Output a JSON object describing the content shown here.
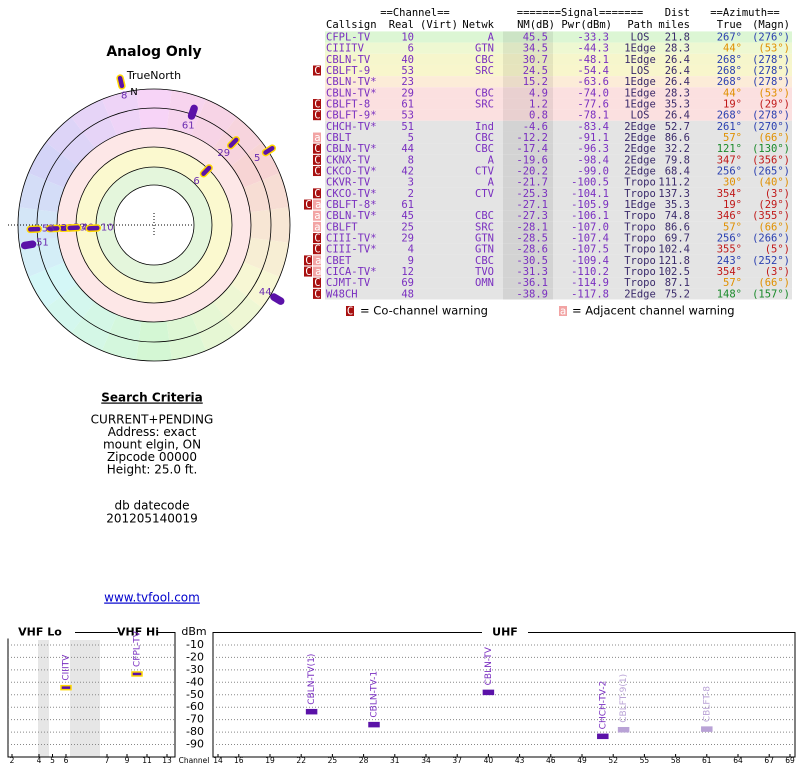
{
  "polar": {
    "title": "Analog Only",
    "north_label": "TrueNorth",
    "n_label": "N",
    "rlim": [
      87,
      -16
    ],
    "markers": [
      {
        "label": "8",
        "azimuth": 347,
        "nm": -19.6,
        "outline": "#ffd800"
      },
      {
        "label": "61",
        "azimuth": 19,
        "nm": 1.2
      },
      {
        "label": "29",
        "azimuth": 44,
        "nm": 4.9,
        "outline": "#ffd800"
      },
      {
        "label": "5",
        "azimuth": 57,
        "nm": -12.2,
        "outline": "#ffd800"
      },
      {
        "label": "6",
        "azimuth": 44,
        "nm": 34.5,
        "outline": "#ffd800"
      },
      {
        "label": "53",
        "azimuth": 268,
        "nm": 24.5,
        "outline": "#ffd800"
      },
      {
        "label": "23",
        "azimuth": 268,
        "nm": 15.2,
        "outline": "#ffd800"
      },
      {
        "label": "53",
        "azimuth": 268,
        "nm": 0.8,
        "outline": "#ffd800"
      },
      {
        "label": "40",
        "azimuth": 268,
        "nm": 30.7,
        "outline": "#ffd800"
      },
      {
        "label": "10",
        "azimuth": 267,
        "nm": 45.5,
        "outline": "#ffd800"
      },
      {
        "label": "51",
        "azimuth": 261,
        "nm": -4.6
      },
      {
        "label": "44",
        "azimuth": 121,
        "nm": -17.4
      }
    ]
  },
  "table": {
    "group_headers": [
      "==Channel==",
      "=======Signal=======",
      "Dist",
      "==Azimuth=="
    ],
    "headers": [
      "Callsign",
      "Real",
      "(Virt)",
      "Netwk",
      "NM(dB)",
      "Pwr(dBm)",
      "Path",
      "miles",
      "True",
      "(Magn)"
    ],
    "rows": [
      {
        "callsign": "CFPL-TV",
        "real": "10",
        "netwk": "A",
        "nm": "45.5",
        "pwr": "-33.3",
        "path": "LOS",
        "miles": "21.8",
        "true": "267°",
        "magn": "(276°)",
        "bg": "#dcf6d4",
        "az_color": "#2a3fb0"
      },
      {
        "callsign": "CIIITV",
        "real": "6",
        "netwk": "GTN",
        "nm": "34.5",
        "pwr": "-44.3",
        "path": "1Edge",
        "miles": "28.3",
        "true": "44°",
        "magn": "(53°)",
        "bg": "#eef8d2",
        "az_color": "#e09000"
      },
      {
        "callsign": "CBLN-TV",
        "real": "40",
        "netwk": "CBC",
        "nm": "30.7",
        "pwr": "-48.1",
        "path": "1Edge",
        "miles": "26.4",
        "true": "268°",
        "magn": "(278°)",
        "bg": "#f6f6cc",
        "az_color": "#2a3fb0"
      },
      {
        "warn": "C",
        "callsign": "CBLFT-9",
        "real": "53",
        "netwk": "SRC",
        "nm": "24.5",
        "pwr": "-54.4",
        "path": "LOS",
        "miles": "26.4",
        "true": "268°",
        "magn": "(278°)",
        "bg": "#f8f6cc",
        "az_color": "#2a3fb0"
      },
      {
        "callsign": "CBLN-TV*",
        "real": "23",
        "nm": "15.2",
        "pwr": "-63.6",
        "path": "1Edge",
        "miles": "26.4",
        "true": "268°",
        "magn": "(278°)",
        "bg": "#fcecd8",
        "az_color": "#2a3fb0"
      },
      {
        "callsign": "CBLN-TV*",
        "real": "29",
        "netwk": "CBC",
        "nm": "4.9",
        "pwr": "-74.0",
        "path": "1Edge",
        "miles": "28.3",
        "true": "44°",
        "magn": "(53°)",
        "bg": "#fbe0e0",
        "az_color": "#e09000"
      },
      {
        "warn": "C",
        "callsign": "CBLFT-8",
        "real": "61",
        "netwk": "SRC",
        "nm": "1.2",
        "pwr": "-77.6",
        "path": "1Edge",
        "miles": "35.3",
        "true": "19°",
        "magn": "(29°)",
        "bg": "#fbe0e0",
        "az_color": "#c01818"
      },
      {
        "warn": "C",
        "callsign": "CBLFT-9*",
        "real": "53",
        "nm": "0.8",
        "pwr": "-78.1",
        "path": "LOS",
        "miles": "26.4",
        "true": "268°",
        "magn": "(278°)",
        "bg": "#fbe0e0",
        "az_color": "#2a3fb0"
      },
      {
        "callsign": "CHCH-TV*",
        "real": "51",
        "netwk": "Ind",
        "nm": "-4.6",
        "pwr": "-83.4",
        "path": "2Edge",
        "miles": "52.7",
        "true": "261°",
        "magn": "(270°)",
        "bg": "#e4e4e4",
        "az_color": "#2a3fb0"
      },
      {
        "warn": "a",
        "callsign": "CBLT",
        "real": "5",
        "netwk": "CBC",
        "nm": "-12.2",
        "pwr": "-91.1",
        "path": "2Edge",
        "miles": "86.6",
        "true": "57°",
        "magn": "(66°)",
        "bg": "#e4e4e4",
        "az_color": "#e09000"
      },
      {
        "warn": "C",
        "callsign": "CBLN-TV*",
        "real": "44",
        "netwk": "CBC",
        "nm": "-17.4",
        "pwr": "-96.3",
        "path": "2Edge",
        "miles": "32.2",
        "true": "121°",
        "magn": "(130°)",
        "bg": "#e4e4e4",
        "az_color": "#1a8a2a"
      },
      {
        "warn": "C",
        "callsign": "CKNX-TV",
        "real": "8",
        "netwk": "A",
        "nm": "-19.6",
        "pwr": "-98.4",
        "path": "2Edge",
        "miles": "79.8",
        "true": "347°",
        "magn": "(356°)",
        "bg": "#e4e4e4",
        "az_color": "#c01818"
      },
      {
        "warn": "C",
        "callsign": "CKCO-TV*",
        "real": "42",
        "netwk": "CTV",
        "nm": "-20.2",
        "pwr": "-99.0",
        "path": "2Edge",
        "miles": "68.4",
        "true": "256°",
        "magn": "(265°)",
        "bg": "#e4e4e4",
        "az_color": "#2a3fb0"
      },
      {
        "callsign": "CKVR-TV",
        "real": "3",
        "netwk": "A",
        "nm": "-21.7",
        "pwr": "-100.5",
        "path": "Tropo",
        "miles": "111.2",
        "true": "30°",
        "magn": "(40°)",
        "bg": "#e4e4e4",
        "az_color": "#e09000"
      },
      {
        "warn": "C",
        "callsign": "CKCO-TV*",
        "real": "2",
        "netwk": "CTV",
        "nm": "-25.3",
        "pwr": "-104.1",
        "path": "Tropo",
        "miles": "137.3",
        "true": "354°",
        "magn": "(3°)",
        "bg": "#e4e4e4",
        "az_color": "#c01818"
      },
      {
        "warn": "Ca",
        "callsign": "CBLFT-8*",
        "real": "61",
        "nm": "-27.1",
        "pwr": "-105.9",
        "path": "1Edge",
        "miles": "35.3",
        "true": "19°",
        "magn": "(29°)",
        "bg": "#e4e4e4",
        "az_color": "#c01818"
      },
      {
        "warn": "a",
        "callsign": "CBLN-TV*",
        "real": "45",
        "netwk": "CBC",
        "nm": "-27.3",
        "pwr": "-106.1",
        "path": "Tropo",
        "miles": "74.8",
        "true": "346°",
        "magn": "(355°)",
        "bg": "#e4e4e4",
        "az_color": "#c01818"
      },
      {
        "warn": "a",
        "callsign": "CBLFT",
        "real": "25",
        "netwk": "SRC",
        "nm": "-28.1",
        "pwr": "-107.0",
        "path": "Tropo",
        "miles": "86.6",
        "true": "57°",
        "magn": "(66°)",
        "bg": "#e4e4e4",
        "az_color": "#e09000"
      },
      {
        "warn": "C",
        "callsign": "CIII-TV*",
        "real": "29",
        "netwk": "GTN",
        "nm": "-28.5",
        "pwr": "-107.4",
        "path": "Tropo",
        "miles": "69.7",
        "true": "256°",
        "magn": "(266°)",
        "bg": "#e4e4e4",
        "az_color": "#2a3fb0"
      },
      {
        "warn": "C",
        "callsign": "CIII-TV*",
        "real": "4",
        "netwk": "GTN",
        "nm": "-28.6",
        "pwr": "-107.5",
        "path": "Tropo",
        "miles": "102.4",
        "true": "355°",
        "magn": "(5°)",
        "bg": "#e4e4e4",
        "az_color": "#c01818"
      },
      {
        "warn": "Ca",
        "callsign": "CBET",
        "real": "9",
        "netwk": "CBC",
        "nm": "-30.5",
        "pwr": "-109.4",
        "path": "Tropo",
        "miles": "121.8",
        "true": "243°",
        "magn": "(252°)",
        "bg": "#e4e4e4",
        "az_color": "#2a3fb0"
      },
      {
        "warn": "Ca",
        "callsign": "CICA-TV*",
        "real": "12",
        "netwk": "TVO",
        "nm": "-31.3",
        "pwr": "-110.2",
        "path": "Tropo",
        "miles": "102.5",
        "true": "354°",
        "magn": "(3°)",
        "bg": "#e4e4e4",
        "az_color": "#c01818"
      },
      {
        "warn": "C",
        "callsign": "CJMT-TV",
        "real": "69",
        "netwk": "OMN",
        "nm": "-36.1",
        "pwr": "-114.9",
        "path": "Tropo",
        "miles": "87.1",
        "true": "57°",
        "magn": "(66°)",
        "bg": "#e4e4e4",
        "az_color": "#e09000"
      },
      {
        "warn": "C",
        "callsign": "W48CH",
        "real": "48",
        "nm": "-38.9",
        "pwr": "-117.8",
        "path": "2Edge",
        "miles": "75.2",
        "true": "148°",
        "magn": "(157°)",
        "bg": "#e4e4e4",
        "az_color": "#1a8a2a"
      }
    ]
  },
  "legend": [
    {
      "symbol": "C",
      "text": "= Co-channel warning"
    },
    {
      "symbol": "a",
      "text": "= Adjacent channel warning"
    }
  ],
  "search": {
    "title": "Search Criteria",
    "lines": [
      "CURRENT+PENDING",
      "Address: exact",
      "mount elgin, ON",
      "Zipcode 00000",
      "Height: 25.0 ft."
    ]
  },
  "datecode": {
    "label": "db datecode",
    "value": "201205140019"
  },
  "link": "www.tvfool.com",
  "spectrum": {
    "y_label": "dBm",
    "x_label": "Channel",
    "ylim": [
      0,
      -100
    ],
    "yticks": [
      -10,
      -20,
      -30,
      -40,
      -50,
      -60,
      -70,
      -80,
      -90
    ],
    "sections": [
      {
        "label": "VHF Lo",
        "xlim": [
          2,
          6
        ],
        "xticks": [
          2,
          4,
          5,
          6
        ]
      },
      {
        "label": "VHF Hi",
        "xlim": [
          7,
          13
        ],
        "xticks": [
          7,
          9,
          11,
          13
        ]
      },
      {
        "label": "UHF",
        "xlim": [
          14,
          69
        ],
        "xticks": [
          14,
          16,
          19,
          22,
          25,
          28,
          31,
          34,
          37,
          40,
          43,
          46,
          49,
          52,
          55,
          58,
          61,
          64,
          67,
          69
        ]
      }
    ],
    "markers": [
      {
        "label": "CIIITV",
        "channel": 6,
        "dbm": -44.3,
        "color": "#5b12a8",
        "outline": "#ffd800"
      },
      {
        "label": "CFPL-TV",
        "channel": 10,
        "dbm": -33.3,
        "color": "#5b12a8",
        "outline": "#ffd800"
      },
      {
        "label": "CBLN-TV(1)",
        "channel": 23,
        "dbm": -63.6,
        "color": "#5b12a8"
      },
      {
        "label": "CBLN-TV-1",
        "channel": 29,
        "dbm": -74.0,
        "color": "#5b12a8"
      },
      {
        "label": "CBLN-TV",
        "channel": 40,
        "dbm": -48.1,
        "color": "#5b12a8"
      },
      {
        "label": "CHCH-TV-2",
        "channel": 51,
        "dbm": -83.4,
        "color": "#5b12a8"
      },
      {
        "label": "CBLFT-9(1)",
        "channel": 53,
        "dbm": -78.1,
        "color": "#b9a2d6"
      },
      {
        "label": "CBLFT-8",
        "channel": 61,
        "dbm": -77.6,
        "color": "#b9a2d6"
      }
    ]
  }
}
